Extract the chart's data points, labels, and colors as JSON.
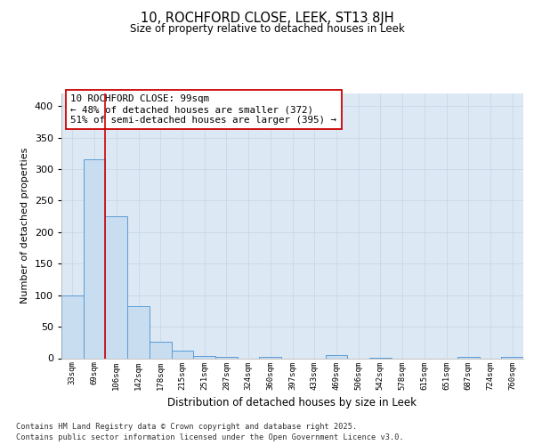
{
  "title1": "10, ROCHFORD CLOSE, LEEK, ST13 8JH",
  "title2": "Size of property relative to detached houses in Leek",
  "xlabel": "Distribution of detached houses by size in Leek",
  "ylabel": "Number of detached properties",
  "categories": [
    "33sqm",
    "69sqm",
    "106sqm",
    "142sqm",
    "178sqm",
    "215sqm",
    "251sqm",
    "287sqm",
    "324sqm",
    "360sqm",
    "397sqm",
    "433sqm",
    "469sqm",
    "506sqm",
    "542sqm",
    "578sqm",
    "615sqm",
    "651sqm",
    "687sqm",
    "724sqm",
    "760sqm"
  ],
  "values": [
    100,
    315,
    225,
    82,
    26,
    12,
    4,
    2,
    0,
    2,
    0,
    0,
    5,
    0,
    1,
    0,
    0,
    0,
    2,
    0,
    2
  ],
  "bar_color": "#c9ddf0",
  "bar_edge_color": "#5b9bd5",
  "vline_x": 1.5,
  "vline_color": "#cc0000",
  "annotation_text": "10 ROCHFORD CLOSE: 99sqm\n← 48% of detached houses are smaller (372)\n51% of semi-detached houses are larger (395) →",
  "annotation_box_color": "#ffffff",
  "annotation_box_edge": "#cc0000",
  "grid_color": "#c8d8e8",
  "footer1": "Contains HM Land Registry data © Crown copyright and database right 2025.",
  "footer2": "Contains public sector information licensed under the Open Government Licence v3.0.",
  "ylim": [
    0,
    420
  ],
  "fig_bg": "#ffffff",
  "plot_bg": "#dce9f5"
}
